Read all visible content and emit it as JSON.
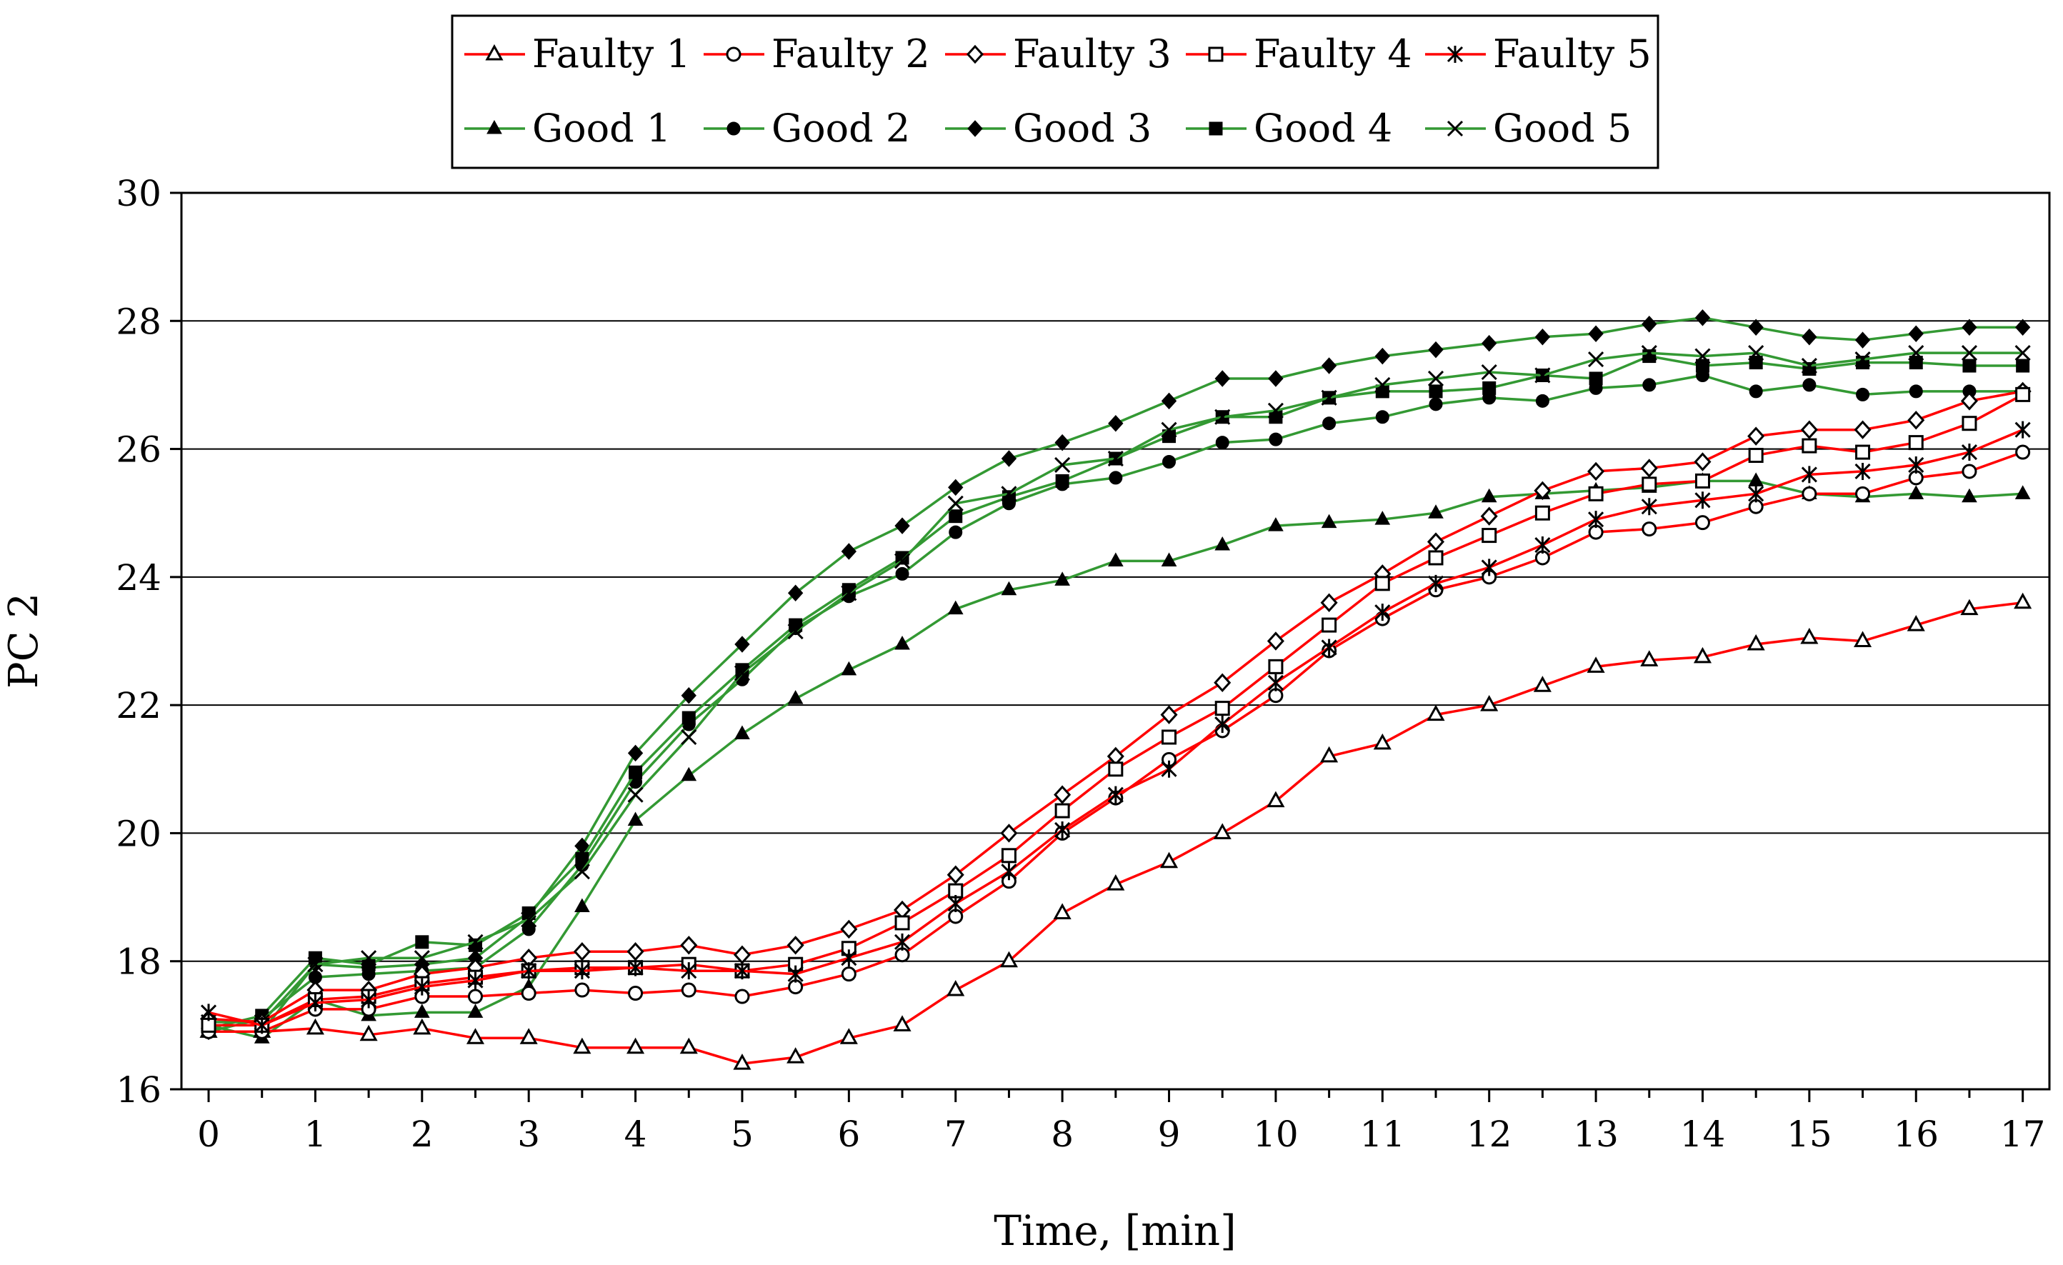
{
  "chart_data": {
    "type": "line",
    "title": "",
    "xlabel": "Time, [min]",
    "ylabel": "PC 2",
    "xlim": [
      -0.25,
      17.25
    ],
    "ylim": [
      16,
      30
    ],
    "x_ticks": [
      "0",
      "1",
      "2",
      "3",
      "4",
      "5",
      "6",
      "7",
      "8",
      "9",
      "10",
      "11",
      "12",
      "13",
      "14",
      "15",
      "16",
      "17"
    ],
    "y_ticks": [
      "16",
      "18",
      "20",
      "22",
      "24",
      "26",
      "28",
      "30"
    ],
    "grid": "horizontal",
    "legend_position": "top-center",
    "x": [
      0,
      0.5,
      1,
      1.5,
      2,
      2.5,
      3,
      3.5,
      4,
      4.5,
      5,
      5.5,
      6,
      6.5,
      7,
      7.5,
      8,
      8.5,
      9,
      9.5,
      10,
      10.5,
      11,
      11.5,
      12,
      12.5,
      13,
      13.5,
      14,
      14.5,
      15,
      15.5,
      16,
      16.5,
      17
    ],
    "series": [
      {
        "name": "Faulty 1",
        "color": "#ff0000",
        "marker": "triangle-open",
        "values": [
          16.9,
          16.9,
          16.95,
          16.85,
          16.95,
          16.8,
          16.8,
          16.65,
          16.65,
          16.65,
          16.4,
          16.5,
          16.8,
          17.0,
          17.55,
          18.0,
          18.75,
          19.2,
          19.55,
          20.0,
          20.5,
          21.2,
          21.4,
          21.85,
          22.0,
          22.3,
          22.6,
          22.7,
          22.75,
          22.95,
          23.05,
          23.0,
          23.25,
          23.5,
          23.6
        ]
      },
      {
        "name": "Faulty 2",
        "color": "#ff0000",
        "marker": "circle-open",
        "values": [
          16.9,
          16.9,
          17.25,
          17.25,
          17.45,
          17.45,
          17.5,
          17.55,
          17.5,
          17.55,
          17.45,
          17.6,
          17.8,
          18.1,
          18.7,
          19.25,
          20.0,
          20.55,
          21.15,
          21.6,
          22.15,
          22.85,
          23.35,
          23.8,
          24.0,
          24.3,
          24.7,
          24.75,
          24.85,
          25.1,
          25.3,
          25.3,
          25.55,
          25.65,
          25.95
        ]
      },
      {
        "name": "Faulty 3",
        "color": "#ff0000",
        "marker": "diamond-open",
        "values": [
          17.1,
          17.05,
          17.55,
          17.55,
          17.8,
          17.9,
          18.05,
          18.15,
          18.15,
          18.25,
          18.1,
          18.25,
          18.5,
          18.8,
          19.35,
          20.0,
          20.6,
          21.2,
          21.85,
          22.35,
          23.0,
          23.6,
          24.05,
          24.55,
          24.95,
          25.35,
          25.65,
          25.7,
          25.8,
          26.2,
          26.3,
          26.3,
          26.45,
          26.75,
          26.9
        ]
      },
      {
        "name": "Faulty 4",
        "color": "#ff0000",
        "marker": "square-open",
        "values": [
          17.0,
          17.0,
          17.4,
          17.45,
          17.65,
          17.75,
          17.85,
          17.9,
          17.9,
          17.95,
          17.85,
          17.95,
          18.2,
          18.6,
          19.1,
          19.65,
          20.35,
          21.0,
          21.5,
          21.95,
          22.6,
          23.25,
          23.9,
          24.3,
          24.65,
          25.0,
          25.3,
          25.45,
          25.5,
          25.9,
          26.05,
          25.95,
          26.1,
          26.4,
          26.85
        ]
      },
      {
        "name": "Faulty 5",
        "color": "#ff0000",
        "marker": "asterisk",
        "values": [
          17.2,
          17.0,
          17.35,
          17.4,
          17.6,
          17.7,
          17.85,
          17.85,
          17.9,
          17.85,
          17.85,
          17.8,
          18.05,
          18.3,
          18.9,
          19.4,
          20.05,
          20.6,
          21.0,
          21.7,
          22.35,
          22.9,
          23.45,
          23.9,
          24.15,
          24.5,
          24.9,
          25.1,
          25.2,
          25.3,
          25.6,
          25.65,
          25.75,
          25.95,
          26.3
        ]
      },
      {
        "name": "Good 1",
        "color": "#339933",
        "marker": "triangle-filled",
        "values": [
          17.0,
          16.8,
          17.4,
          17.15,
          17.2,
          17.2,
          17.6,
          18.85,
          20.2,
          20.9,
          21.55,
          22.1,
          22.55,
          22.95,
          23.5,
          23.8,
          23.95,
          24.25,
          24.25,
          24.5,
          24.8,
          24.85,
          24.9,
          25.0,
          25.25,
          25.3,
          25.35,
          25.4,
          25.5,
          25.5,
          25.3,
          25.25,
          25.3,
          25.25,
          25.3
        ]
      },
      {
        "name": "Good 2",
        "color": "#339933",
        "marker": "circle-filled",
        "values": [
          16.9,
          17.1,
          17.75,
          17.8,
          17.85,
          17.9,
          18.5,
          19.5,
          20.8,
          21.7,
          22.4,
          23.2,
          23.7,
          24.05,
          24.7,
          25.15,
          25.45,
          25.55,
          25.8,
          26.1,
          26.15,
          26.4,
          26.5,
          26.7,
          26.8,
          26.75,
          26.95,
          27.0,
          27.15,
          26.9,
          27.0,
          26.85,
          26.9,
          26.9,
          26.9
        ]
      },
      {
        "name": "Good 3",
        "color": "#339933",
        "marker": "diamond-filled",
        "values": [
          16.9,
          16.9,
          17.95,
          17.9,
          17.95,
          18.05,
          18.7,
          19.8,
          21.25,
          22.15,
          22.95,
          23.75,
          24.4,
          24.8,
          25.4,
          25.85,
          26.1,
          26.4,
          26.75,
          27.1,
          27.1,
          27.3,
          27.45,
          27.55,
          27.65,
          27.75,
          27.8,
          27.95,
          28.05,
          27.9,
          27.75,
          27.7,
          27.8,
          27.9,
          27.9
        ]
      },
      {
        "name": "Good 4",
        "color": "#339933",
        "marker": "square-filled",
        "values": [
          16.95,
          17.15,
          18.05,
          17.95,
          18.3,
          18.25,
          18.75,
          19.6,
          20.95,
          21.8,
          22.55,
          23.25,
          23.8,
          24.3,
          24.95,
          25.25,
          25.5,
          25.85,
          26.2,
          26.5,
          26.5,
          26.8,
          26.9,
          26.9,
          26.95,
          27.15,
          27.1,
          27.45,
          27.3,
          27.35,
          27.25,
          27.35,
          27.35,
          27.3,
          27.3
        ]
      },
      {
        "name": "Good 5",
        "color": "#339933",
        "marker": "x",
        "values": [
          17.05,
          17.05,
          17.95,
          18.05,
          18.05,
          18.3,
          18.65,
          19.4,
          20.6,
          21.5,
          22.5,
          23.15,
          23.75,
          24.25,
          25.15,
          25.3,
          25.75,
          25.85,
          26.3,
          26.5,
          26.6,
          26.8,
          27.0,
          27.1,
          27.2,
          27.15,
          27.4,
          27.5,
          27.45,
          27.5,
          27.3,
          27.4,
          27.5,
          27.5,
          27.5
        ]
      }
    ]
  }
}
